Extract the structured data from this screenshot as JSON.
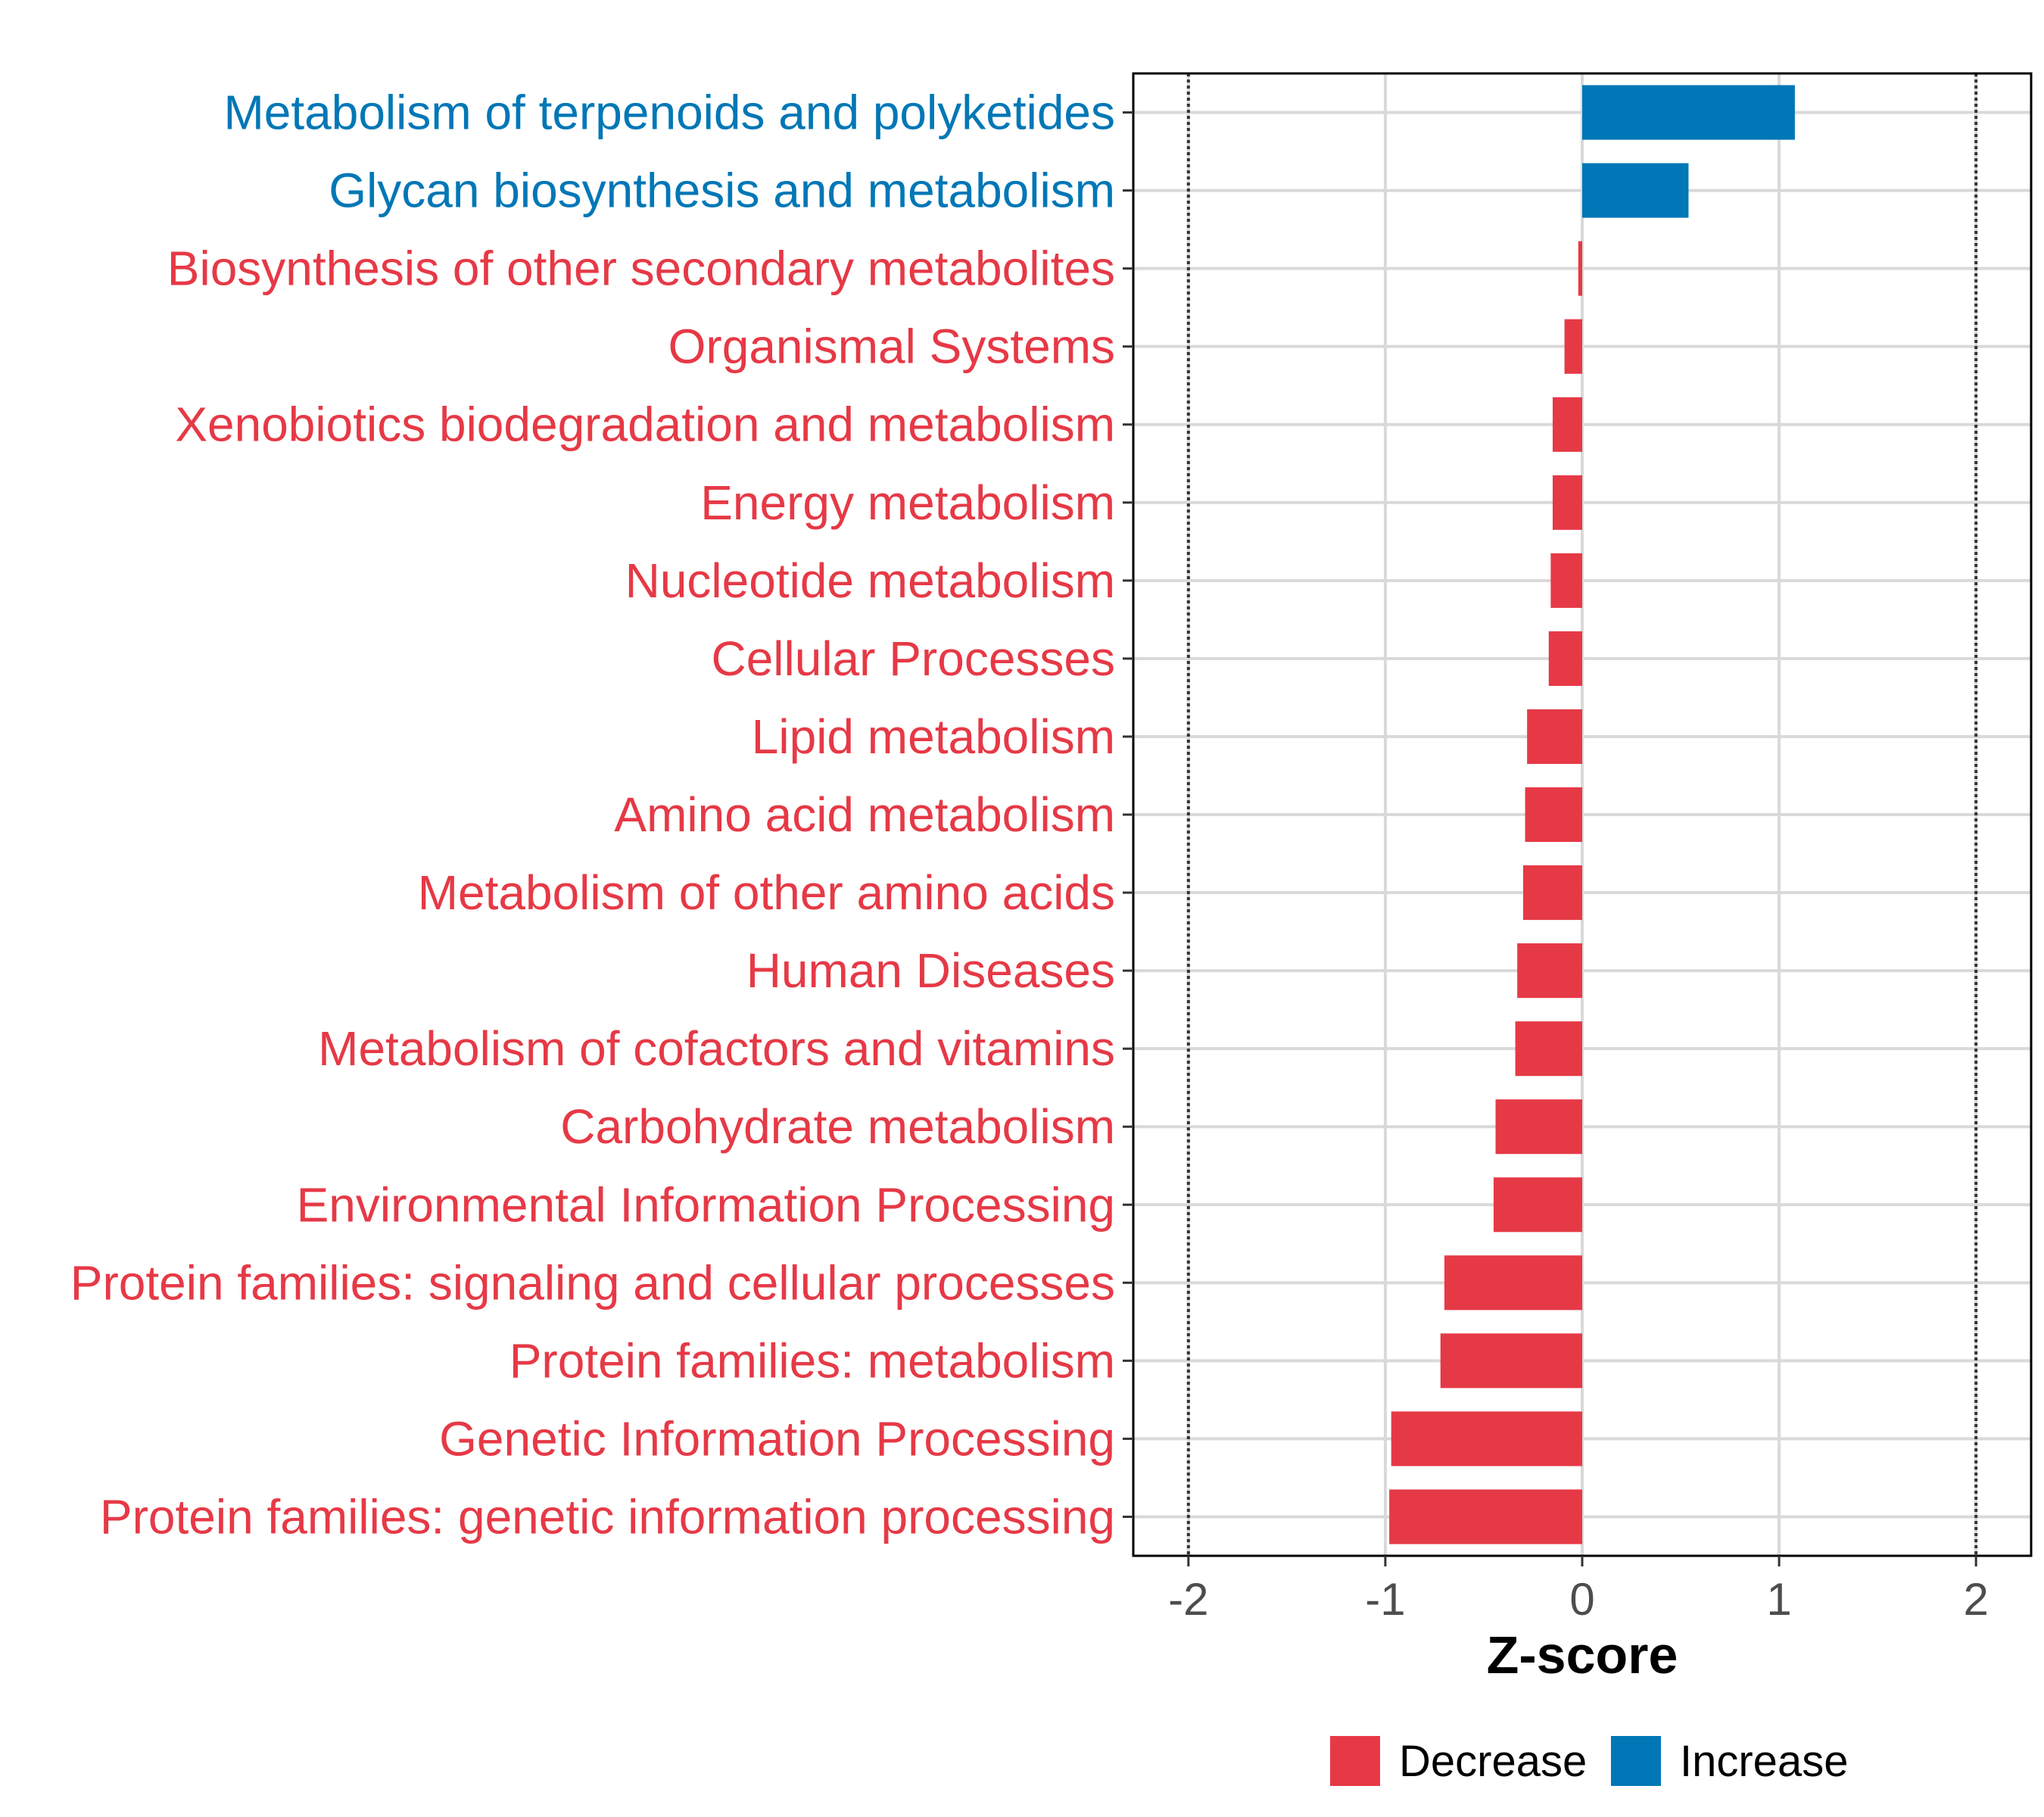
{
  "chart_data": {
    "type": "bar",
    "orientation": "horizontal",
    "xlabel": "Z-score",
    "xlim": [
      -2.28,
      2.28
    ],
    "xticks": [
      -2,
      -1,
      0,
      1,
      2
    ],
    "xtick_labels": [
      "-2",
      "-1",
      "0",
      "1",
      "2"
    ],
    "reference_lines": [
      -2,
      2
    ],
    "grid": true,
    "categories": [
      "Metabolism of terpenoids and polyketides",
      "Glycan biosynthesis and metabolism",
      "Biosynthesis of other secondary metabolites",
      "Organismal Systems",
      "Xenobiotics biodegradation and metabolism",
      "Energy metabolism",
      "Nucleotide metabolism",
      "Cellular Processes",
      "Lipid metabolism",
      "Amino acid metabolism",
      "Metabolism of other amino acids",
      "Human Diseases",
      "Metabolism of cofactors and vitamins",
      "Carbohydrate metabolism",
      "Environmental Information Processing",
      "Protein families: signaling and cellular processes",
      "Protein families: metabolism",
      "Genetic Information Processing",
      "Protein families: genetic information processing"
    ],
    "values": [
      1.08,
      0.54,
      -0.02,
      -0.09,
      -0.15,
      -0.15,
      -0.16,
      -0.17,
      -0.28,
      -0.29,
      -0.3,
      -0.33,
      -0.34,
      -0.44,
      -0.45,
      -0.7,
      -0.72,
      -0.97,
      -0.98
    ],
    "groups": [
      "Increase",
      "Increase",
      "Decrease",
      "Decrease",
      "Decrease",
      "Decrease",
      "Decrease",
      "Decrease",
      "Decrease",
      "Decrease",
      "Decrease",
      "Decrease",
      "Decrease",
      "Decrease",
      "Decrease",
      "Decrease",
      "Decrease",
      "Decrease",
      "Decrease"
    ],
    "legend": {
      "position": "bottom",
      "entries": [
        {
          "label": "Decrease",
          "color": "#E63946"
        },
        {
          "label": "Increase",
          "color": "#0077B6"
        }
      ]
    }
  }
}
